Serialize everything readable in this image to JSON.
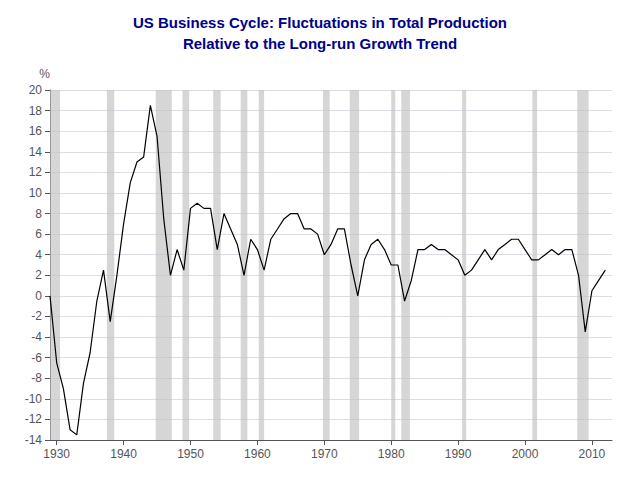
{
  "chart_data": {
    "type": "line",
    "title": "US Business Cycle: Fluctuations in Total Production",
    "subtitle": "Relative to the Long-run Growth Trend",
    "ylabel": "%",
    "x": [
      1929,
      1930,
      1931,
      1932,
      1933,
      1934,
      1935,
      1936,
      1937,
      1938,
      1939,
      1940,
      1941,
      1942,
      1943,
      1944,
      1945,
      1946,
      1947,
      1948,
      1949,
      1950,
      1951,
      1952,
      1953,
      1954,
      1955,
      1956,
      1957,
      1958,
      1959,
      1960,
      1961,
      1962,
      1963,
      1964,
      1965,
      1966,
      1967,
      1968,
      1969,
      1970,
      1971,
      1972,
      1973,
      1974,
      1975,
      1976,
      1977,
      1978,
      1979,
      1980,
      1981,
      1982,
      1983,
      1984,
      1985,
      1986,
      1987,
      1988,
      1989,
      1990,
      1991,
      1992,
      1993,
      1994,
      1995,
      1996,
      1997,
      1998,
      1999,
      2000,
      2001,
      2002,
      2003,
      2004,
      2005,
      2006,
      2007,
      2008,
      2009,
      2010,
      2011,
      2012
    ],
    "values": [
      0.0,
      -6.5,
      -9.0,
      -13.0,
      -13.5,
      -8.5,
      -5.5,
      -0.5,
      2.5,
      -2.5,
      2.0,
      7.0,
      11.0,
      13.0,
      13.5,
      18.5,
      15.5,
      7.5,
      2.0,
      4.5,
      2.5,
      8.5,
      9.0,
      8.5,
      8.5,
      4.5,
      8.0,
      6.5,
      5.0,
      2.0,
      5.5,
      4.5,
      2.5,
      5.5,
      6.5,
      7.5,
      8.0,
      8.0,
      6.5,
      6.5,
      6.0,
      4.0,
      5.0,
      6.5,
      6.5,
      3.0,
      0.0,
      3.5,
      5.0,
      5.5,
      4.5,
      3.0,
      3.0,
      -0.5,
      1.5,
      4.5,
      4.5,
      5.0,
      4.5,
      4.5,
      4.0,
      3.5,
      2.0,
      2.5,
      3.5,
      4.5,
      3.5,
      4.5,
      5.0,
      5.5,
      5.5,
      4.5,
      3.5,
      3.5,
      4.0,
      4.5,
      4.0,
      4.5,
      4.5,
      2.0,
      -3.5,
      0.5,
      1.5,
      2.5
    ],
    "color": "#000000",
    "recession_bands": [
      [
        1929.0,
        1930.5
      ],
      [
        1937.5,
        1938.6
      ],
      [
        1944.8,
        1947.2
      ],
      [
        1948.8,
        1949.8
      ],
      [
        1953.4,
        1954.5
      ],
      [
        1957.5,
        1958.5
      ],
      [
        1960.2,
        1961.0
      ],
      [
        1969.8,
        1970.8
      ],
      [
        1973.8,
        1975.2
      ],
      [
        1980.0,
        1980.6
      ],
      [
        1981.5,
        1982.8
      ],
      [
        1990.6,
        1991.2
      ],
      [
        2001.1,
        2001.8
      ],
      [
        2007.8,
        2009.5
      ]
    ],
    "xlim": [
      1929,
      2013
    ],
    "xticks": [
      1930,
      1940,
      1950,
      1960,
      1970,
      1980,
      1990,
      2000,
      2010
    ],
    "ylim": [
      -14,
      20
    ],
    "yticks": [
      -14,
      -12,
      -10,
      -8,
      -6,
      -4,
      -2,
      0,
      2,
      4,
      6,
      8,
      10,
      12,
      14,
      16,
      18,
      20
    ],
    "grid": true
  }
}
